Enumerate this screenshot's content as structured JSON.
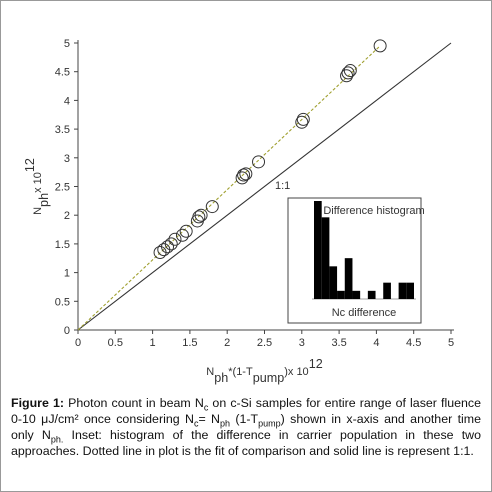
{
  "chart_data": {
    "type": "scatter",
    "x": [
      1.1,
      1.15,
      1.2,
      1.25,
      1.3,
      1.4,
      1.45,
      1.6,
      1.62,
      1.65,
      1.8,
      2.2,
      2.22,
      2.25,
      2.42,
      3.0,
      3.02,
      3.6,
      3.62,
      3.65,
      4.05
    ],
    "y": [
      1.35,
      1.4,
      1.45,
      1.5,
      1.58,
      1.65,
      1.72,
      1.9,
      1.97,
      2.0,
      2.15,
      2.65,
      2.7,
      2.72,
      2.93,
      3.62,
      3.67,
      4.43,
      4.48,
      4.52,
      4.95
    ],
    "color": "#333333",
    "xlim": [
      0,
      5
    ],
    "ylim": [
      0,
      5
    ],
    "xticks": [
      0,
      0.5,
      1,
      1.5,
      2,
      2.5,
      3,
      3.5,
      4,
      4.5,
      5
    ],
    "yticks": [
      0,
      0.5,
      1,
      1.5,
      2,
      2.5,
      3,
      3.5,
      4,
      4.5,
      5
    ],
    "fit_line": {
      "x": [
        0,
        4.05
      ],
      "y": [
        0,
        4.95
      ],
      "color": "#a0a030"
    },
    "identity_line": {
      "x": [
        0,
        5
      ],
      "y": [
        0,
        5
      ],
      "color": "#333333"
    },
    "annotation": "1:1",
    "xlabel": [
      {
        "text": "N"
      },
      {
        "text": "ph",
        "sub": true
      },
      {
        "text": "*(1-T"
      },
      {
        "text": "pump",
        "sub": true
      },
      {
        "text": ")x 10"
      },
      {
        "text": "12",
        "sup": true
      }
    ],
    "ylabel": [
      {
        "text": "N"
      },
      {
        "text": "ph",
        "sub": true
      },
      {
        "text": "x 10"
      },
      {
        "text": "12",
        "sup": true
      }
    ],
    "inset": {
      "type": "histogram",
      "title": "Difference histogram",
      "xlabel": "Nc difference",
      "bins": [
        0,
        0.05,
        0.1,
        0.15,
        0.2,
        0.25,
        0.3,
        0.35,
        0.4,
        0.45,
        0.5,
        0.55,
        0.6,
        0.65
      ],
      "counts": [
        12,
        10,
        4,
        1,
        5,
        1,
        0,
        1,
        0,
        2,
        0,
        2,
        2
      ],
      "xlim": [
        0,
        0.65
      ],
      "ylim": [
        0,
        12
      ],
      "color": "#000000"
    }
  },
  "caption": {
    "label": "Figure 1:",
    "parts": [
      {
        "text": " Photon count in beam N"
      },
      {
        "text": "c",
        "sub": true
      },
      {
        "text": " on c-Si samples for entire range of laser fluence 0-10 μJ/cm² once considering N"
      },
      {
        "text": "c",
        "sub": true
      },
      {
        "text": "= N"
      },
      {
        "text": "ph",
        "sub": true
      },
      {
        "text": " (1-T"
      },
      {
        "text": "pump",
        "sub": true
      },
      {
        "text": ") shown in x-axis and another time only N"
      },
      {
        "text": "ph.",
        "sub": true
      },
      {
        "text": " Inset: histogram of the difference in carrier population in these two approaches. Dotted line in plot is the fit of comparison and solid line is represent 1:1."
      }
    ]
  }
}
